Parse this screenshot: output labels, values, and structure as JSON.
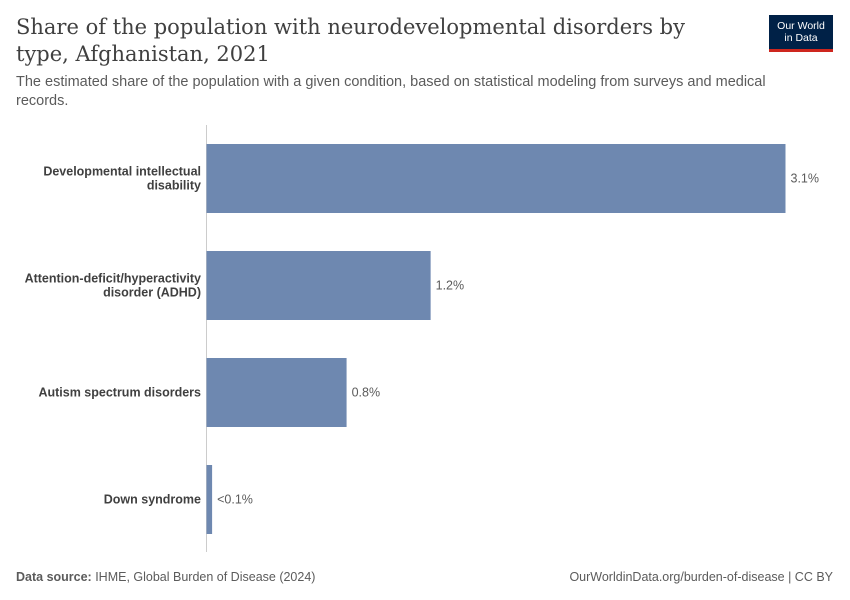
{
  "header": {
    "title": "Share of the population with neurodevelopmental disorders by type, Afghanistan, 2021",
    "subtitle": "The estimated share of the population with a given condition, based on statistical modeling from surveys and medical records."
  },
  "logo": {
    "line1": "Our World",
    "line2": "in Data"
  },
  "footer": {
    "source_label": "Data source:",
    "source_text": " IHME, Global Burden of Disease (2024)",
    "url_text": "OurWorldinData.org/burden-of-disease | CC BY"
  },
  "colors": {
    "bar": "#6e88b0",
    "axis": "#cccccc"
  },
  "chart_data": {
    "type": "bar",
    "orientation": "horizontal",
    "title": "Share of the population with neurodevelopmental disorders by type, Afghanistan, 2021",
    "categories": [
      [
        "Developmental intellectual",
        "disability"
      ],
      [
        "Attention-deficit/hyperactivity",
        "disorder (ADHD)"
      ],
      [
        "Autism spectrum disorders"
      ],
      [
        "Down syndrome"
      ]
    ],
    "values": [
      3.1,
      1.2,
      0.75,
      0.03
    ],
    "value_labels": [
      "3.1%",
      "1.2%",
      "0.8%",
      "<0.1%"
    ],
    "unit": "%",
    "xlim": [
      0,
      3.1
    ]
  }
}
